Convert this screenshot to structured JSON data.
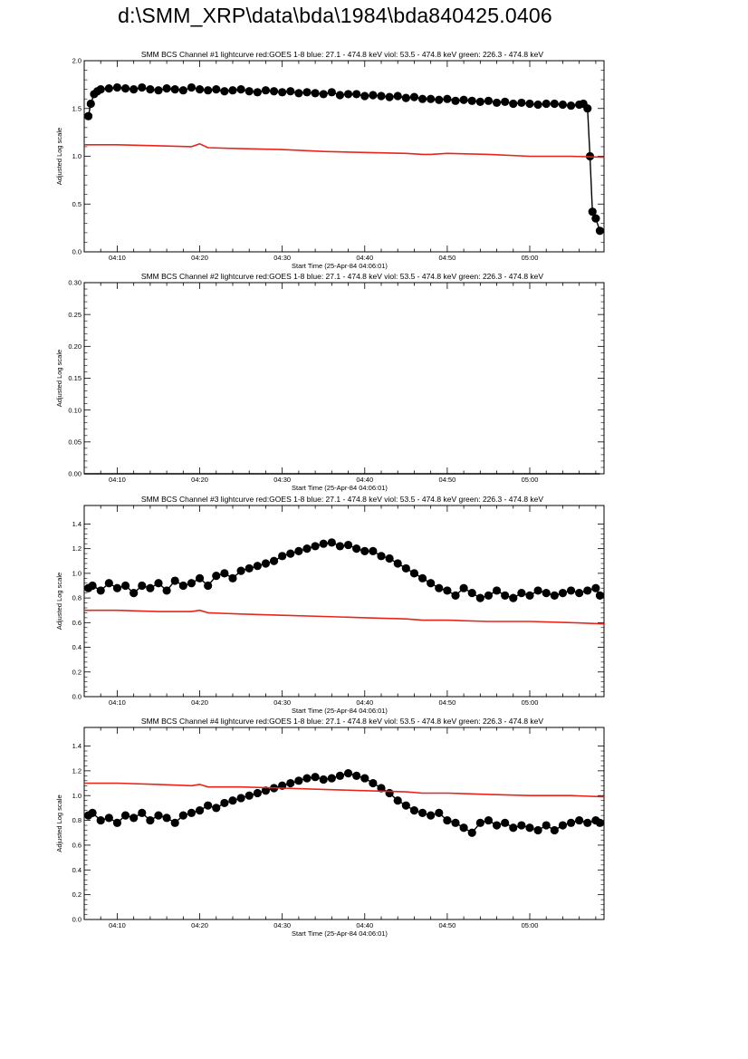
{
  "page": {
    "title": "d:\\SMM_XRP\\data\\bda\\1984\\bda840425.0406"
  },
  "colors": {
    "data": "#000000",
    "goes": "#e8251b",
    "axis": "#000000",
    "background": "#ffffff"
  },
  "chart_data": [
    {
      "type": "scatter",
      "title": "SMM BCS Channel #1 lightcurve  red:GOES 1-8  blue: 27.1 - 474.8 keV  viol: 53.5 - 474.8 keV  green: 226.3 - 474.8 keV",
      "xlabel": "Start Time (25-Apr-84 04:06:01)",
      "ylabel": "Adjusted Log scale",
      "xlim_minutes": [
        6.0,
        69.0
      ],
      "ylim": [
        0.0,
        2.0
      ],
      "x_ticks": [
        "04:10",
        "04:20",
        "04:30",
        "04:40",
        "04:50",
        "05:00"
      ],
      "y_ticks": [
        "0.0",
        "0.5",
        "1.0",
        "1.5",
        "2.0"
      ],
      "series": [
        {
          "color": "black",
          "style": "line+markers",
          "x": [
            6.5,
            6.8,
            7.2,
            7.6,
            8.0,
            9,
            10,
            11,
            12,
            13,
            14,
            15,
            16,
            17,
            18,
            19,
            20,
            21,
            22,
            23,
            24,
            25,
            26,
            27,
            28,
            29,
            30,
            31,
            32,
            33,
            34,
            35,
            36,
            37,
            38,
            39,
            40,
            41,
            42,
            43,
            44,
            45,
            46,
            47,
            48,
            49,
            50,
            51,
            52,
            53,
            54,
            55,
            56,
            57,
            58,
            59,
            60,
            61,
            62,
            63,
            64,
            65,
            66,
            66.5,
            67.0,
            67.3,
            67.6,
            68.0,
            68.5
          ],
          "y": [
            1.42,
            1.55,
            1.65,
            1.68,
            1.7,
            1.71,
            1.72,
            1.71,
            1.7,
            1.72,
            1.7,
            1.69,
            1.71,
            1.7,
            1.69,
            1.72,
            1.7,
            1.69,
            1.7,
            1.68,
            1.69,
            1.7,
            1.68,
            1.67,
            1.69,
            1.68,
            1.67,
            1.68,
            1.66,
            1.67,
            1.66,
            1.65,
            1.67,
            1.64,
            1.65,
            1.65,
            1.63,
            1.64,
            1.63,
            1.62,
            1.63,
            1.61,
            1.62,
            1.6,
            1.6,
            1.59,
            1.6,
            1.58,
            1.59,
            1.58,
            1.57,
            1.58,
            1.56,
            1.57,
            1.55,
            1.56,
            1.55,
            1.54,
            1.55,
            1.55,
            1.54,
            1.53,
            1.54,
            1.55,
            1.5,
            1.0,
            0.42,
            0.35,
            0.22
          ]
        },
        {
          "color": "red",
          "style": "line",
          "x": [
            6,
            10,
            15,
            19,
            20,
            21,
            25,
            30,
            35,
            40,
            45,
            47,
            48,
            50,
            55,
            60,
            65,
            69
          ],
          "y": [
            1.12,
            1.12,
            1.11,
            1.1,
            1.13,
            1.09,
            1.08,
            1.07,
            1.05,
            1.04,
            1.03,
            1.02,
            1.02,
            1.03,
            1.02,
            1.0,
            1.0,
            0.99
          ]
        }
      ]
    },
    {
      "type": "line",
      "title": "SMM BCS Channel #2 lightcurve  red:GOES 1-8  blue: 27.1 - 474.8 keV  viol: 53.5 - 474.8 keV  green: 226.3 - 474.8 keV",
      "xlabel": "Start Time (25-Apr-84 04:06:01)",
      "ylabel": "Adjusted Log scale",
      "xlim_minutes": [
        6.0,
        69.0
      ],
      "ylim": [
        0.0,
        0.3
      ],
      "x_ticks": [
        "04:10",
        "04:20",
        "04:30",
        "04:40",
        "04:50",
        "05:00"
      ],
      "y_ticks": [
        "0.00",
        "0.05",
        "0.10",
        "0.15",
        "0.20",
        "0.25",
        "0.30"
      ],
      "series": [
        {
          "color": "black",
          "style": "line",
          "x": [
            6.0,
            68.5
          ],
          "y": [
            0.0,
            0.0
          ]
        }
      ]
    },
    {
      "type": "scatter",
      "title": "SMM BCS Channel #3 lightcurve  red:GOES 1-8  blue: 27.1 - 474.8 keV  viol: 53.5 - 474.8 keV  green: 226.3 - 474.8 keV",
      "xlabel": "Start Time (25-Apr-84 04:06:01)",
      "ylabel": "Adjusted Log scale",
      "xlim_minutes": [
        6.0,
        69.0
      ],
      "ylim": [
        0.0,
        1.55
      ],
      "x_ticks": [
        "04:10",
        "04:20",
        "04:30",
        "04:40",
        "04:50",
        "05:00"
      ],
      "y_ticks": [
        "0.0",
        "0.2",
        "0.4",
        "0.6",
        "0.8",
        "1.0",
        "1.2",
        "1.4"
      ],
      "series": [
        {
          "color": "black",
          "style": "line+markers",
          "x": [
            6.5,
            7,
            8,
            9,
            10,
            11,
            12,
            13,
            14,
            15,
            16,
            17,
            18,
            19,
            20,
            21,
            22,
            23,
            24,
            25,
            26,
            27,
            28,
            29,
            30,
            31,
            32,
            33,
            34,
            35,
            36,
            37,
            38,
            39,
            40,
            41,
            42,
            43,
            44,
            45,
            46,
            47,
            48,
            49,
            50,
            51,
            52,
            53,
            54,
            55,
            56,
            57,
            58,
            59,
            60,
            61,
            62,
            63,
            64,
            65,
            66,
            67,
            68,
            68.5
          ],
          "y": [
            0.88,
            0.9,
            0.86,
            0.92,
            0.88,
            0.9,
            0.84,
            0.9,
            0.88,
            0.92,
            0.86,
            0.94,
            0.9,
            0.92,
            0.96,
            0.9,
            0.98,
            1.0,
            0.96,
            1.02,
            1.04,
            1.06,
            1.08,
            1.1,
            1.14,
            1.16,
            1.18,
            1.2,
            1.22,
            1.24,
            1.25,
            1.22,
            1.23,
            1.2,
            1.18,
            1.18,
            1.14,
            1.12,
            1.08,
            1.04,
            1.0,
            0.96,
            0.92,
            0.88,
            0.86,
            0.82,
            0.88,
            0.84,
            0.8,
            0.82,
            0.86,
            0.82,
            0.8,
            0.84,
            0.82,
            0.86,
            0.84,
            0.82,
            0.84,
            0.86,
            0.84,
            0.86,
            0.88,
            0.82
          ]
        },
        {
          "color": "red",
          "style": "line",
          "x": [
            6,
            10,
            15,
            19,
            20,
            21,
            25,
            30,
            35,
            40,
            45,
            47,
            48,
            50,
            55,
            60,
            65,
            69
          ],
          "y": [
            0.7,
            0.7,
            0.69,
            0.69,
            0.7,
            0.68,
            0.67,
            0.66,
            0.65,
            0.64,
            0.63,
            0.62,
            0.62,
            0.62,
            0.61,
            0.61,
            0.6,
            0.59
          ]
        }
      ]
    },
    {
      "type": "scatter",
      "title": "SMM BCS Channel #4 lightcurve  red:GOES 1-8  blue: 27.1 - 474.8 keV  viol: 53.5 - 474.8 keV  green: 226.3 - 474.8 keV",
      "xlabel": "Start Time (25-Apr-84 04:06:01)",
      "ylabel": "Adjusted Log scale",
      "xlim_minutes": [
        6.0,
        69.0
      ],
      "ylim": [
        0.0,
        1.55
      ],
      "x_ticks": [
        "04:10",
        "04:20",
        "04:30",
        "04:40",
        "04:50",
        "05:00"
      ],
      "y_ticks": [
        "0.0",
        "0.2",
        "0.4",
        "0.6",
        "0.8",
        "1.0",
        "1.2",
        "1.4"
      ],
      "series": [
        {
          "color": "black",
          "style": "line+markers",
          "x": [
            6.5,
            7,
            8,
            9,
            10,
            11,
            12,
            13,
            14,
            15,
            16,
            17,
            18,
            19,
            20,
            21,
            22,
            23,
            24,
            25,
            26,
            27,
            28,
            29,
            30,
            31,
            32,
            33,
            34,
            35,
            36,
            37,
            38,
            39,
            40,
            41,
            42,
            43,
            44,
            45,
            46,
            47,
            48,
            49,
            50,
            51,
            52,
            53,
            54,
            55,
            56,
            57,
            58,
            59,
            60,
            61,
            62,
            63,
            64,
            65,
            66,
            67,
            68,
            68.5
          ],
          "y": [
            0.84,
            0.86,
            0.8,
            0.82,
            0.78,
            0.84,
            0.82,
            0.86,
            0.8,
            0.84,
            0.82,
            0.78,
            0.84,
            0.86,
            0.88,
            0.92,
            0.9,
            0.94,
            0.96,
            0.98,
            1.0,
            1.02,
            1.04,
            1.06,
            1.08,
            1.1,
            1.12,
            1.14,
            1.15,
            1.13,
            1.14,
            1.16,
            1.18,
            1.16,
            1.14,
            1.1,
            1.06,
            1.02,
            0.96,
            0.92,
            0.88,
            0.86,
            0.84,
            0.86,
            0.8,
            0.78,
            0.74,
            0.7,
            0.78,
            0.8,
            0.76,
            0.78,
            0.74,
            0.76,
            0.74,
            0.72,
            0.76,
            0.72,
            0.76,
            0.78,
            0.8,
            0.78,
            0.8,
            0.78
          ]
        },
        {
          "color": "red",
          "style": "line",
          "x": [
            6,
            10,
            15,
            19,
            20,
            21,
            25,
            30,
            35,
            40,
            45,
            47,
            48,
            50,
            55,
            60,
            65,
            69
          ],
          "y": [
            1.1,
            1.1,
            1.09,
            1.08,
            1.09,
            1.07,
            1.07,
            1.06,
            1.05,
            1.04,
            1.03,
            1.02,
            1.02,
            1.02,
            1.01,
            1.0,
            1.0,
            0.99
          ]
        }
      ]
    }
  ]
}
